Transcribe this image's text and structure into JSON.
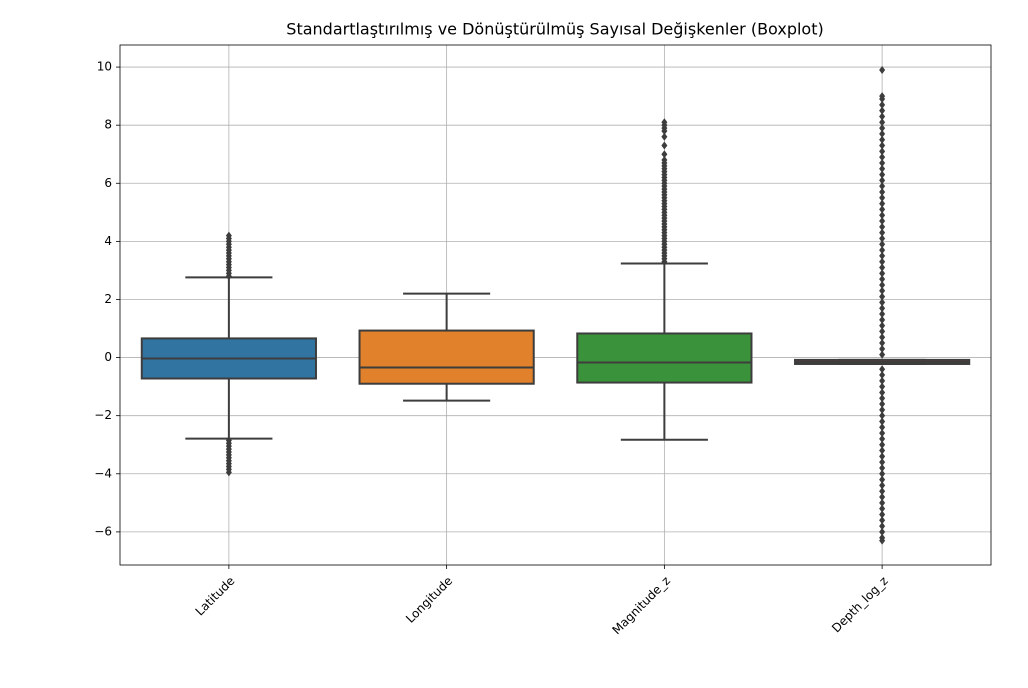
{
  "chart_data": {
    "type": "box",
    "title": "Standartlaştırılmış ve Dönüştürülmüş Sayısal Değişkenler (Boxplot)",
    "categories": [
      "Latitude",
      "Longitude",
      "Magnitude_z",
      "Depth_log_z"
    ],
    "ylim": [
      -7.14,
      10.76
    ],
    "yticks": [
      {
        "value": -6,
        "label": "−6"
      },
      {
        "value": -4,
        "label": "−4"
      },
      {
        "value": -2,
        "label": "−2"
      },
      0,
      2,
      4,
      6,
      8,
      10
    ],
    "grid": true,
    "outlier_color": "#3d3d3d",
    "boxes": [
      {
        "color": "#3274a1",
        "whisker_low": -2.79,
        "q1": -0.72,
        "median": -0.03,
        "q3": 0.66,
        "whisker_high": 2.76,
        "outliers": [
          2.8,
          2.9,
          3.0,
          3.1,
          3.2,
          3.3,
          3.4,
          3.5,
          3.6,
          3.7,
          3.8,
          3.9,
          4.0,
          4.1,
          4.2,
          -2.85,
          -2.95,
          -3.05,
          -3.15,
          -3.25,
          -3.35,
          -3.45,
          -3.55,
          -3.65,
          -3.75,
          -3.85,
          -3.95
        ]
      },
      {
        "color": "#e1812c",
        "whisker_low": -1.48,
        "q1": -0.9,
        "median": -0.34,
        "q3": 0.93,
        "whisker_high": 2.2,
        "outliers": []
      },
      {
        "color": "#3a923a",
        "whisker_low": -2.83,
        "q1": -0.86,
        "median": -0.17,
        "q3": 0.83,
        "whisker_high": 3.24,
        "outliers": [
          3.3,
          3.4,
          3.5,
          3.6,
          3.7,
          3.8,
          3.9,
          4.0,
          4.1,
          4.2,
          4.3,
          4.4,
          4.5,
          4.6,
          4.7,
          4.8,
          4.9,
          5.0,
          5.1,
          5.2,
          5.3,
          5.4,
          5.5,
          5.6,
          5.7,
          5.8,
          5.9,
          6.0,
          6.1,
          6.2,
          6.3,
          6.4,
          6.5,
          6.6,
          6.7,
          6.8,
          7.0,
          7.3,
          7.6,
          7.8,
          7.9,
          8.0,
          8.1
        ]
      },
      {
        "color": "#c03d3e",
        "whisker_low": -0.22,
        "q1": -0.22,
        "median": -0.15,
        "q3": -0.08,
        "whisker_high": -0.08,
        "outliers": [
          0.1,
          0.3,
          0.5,
          0.7,
          0.9,
          1.1,
          1.3,
          1.5,
          1.7,
          1.9,
          2.1,
          2.3,
          2.5,
          2.7,
          2.9,
          3.1,
          3.3,
          3.5,
          3.7,
          3.9,
          4.1,
          4.3,
          4.5,
          4.7,
          4.9,
          5.1,
          5.3,
          5.5,
          5.7,
          5.9,
          6.1,
          6.3,
          6.5,
          6.7,
          6.9,
          7.1,
          7.3,
          7.5,
          7.7,
          7.9,
          8.1,
          8.3,
          8.5,
          8.7,
          8.9,
          9.0,
          9.9,
          -0.4,
          -0.6,
          -0.8,
          -1.0,
          -1.2,
          -1.4,
          -1.6,
          -1.8,
          -2.0,
          -2.2,
          -2.4,
          -2.6,
          -2.8,
          -3.0,
          -3.2,
          -3.4,
          -3.6,
          -3.8,
          -4.0,
          -4.2,
          -4.4,
          -4.6,
          -4.8,
          -5.0,
          -5.2,
          -5.4,
          -5.6,
          -5.8,
          -6.0,
          -6.2,
          -6.3
        ]
      }
    ]
  }
}
